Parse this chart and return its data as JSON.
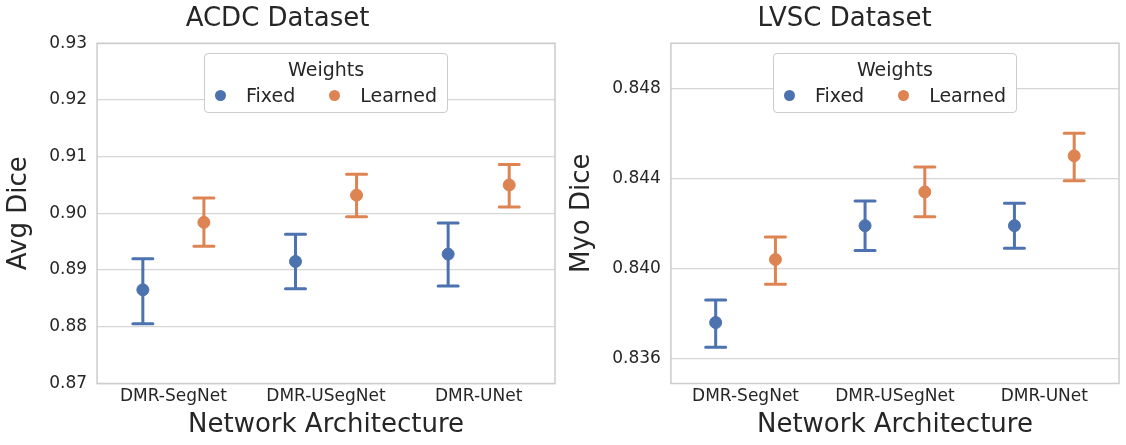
{
  "chart_data": [
    {
      "type": "scatter",
      "title": "ACDC Dataset",
      "xlabel": "Network Architecture",
      "ylabel": "Avg Dice",
      "legend_title": "Weights",
      "categories": [
        "DMR-SegNet",
        "DMR-USegNet",
        "DMR-UNet"
      ],
      "series": [
        {
          "name": "Fixed",
          "color": "#4c72b0",
          "values": [
            0.8865,
            0.8915,
            0.8928
          ],
          "errors": [
            [
              0.8805,
              0.892
            ],
            [
              0.8867,
              0.8963
            ],
            [
              0.8872,
              0.8983
            ]
          ]
        },
        {
          "name": "Learned",
          "color": "#dd8452",
          "values": [
            0.8984,
            0.9032,
            0.905
          ],
          "errors": [
            [
              0.8942,
              0.9027
            ],
            [
              0.8994,
              0.9069
            ],
            [
              0.9011,
              0.9086
            ]
          ]
        }
      ],
      "ylim": [
        0.87,
        0.93
      ],
      "yticks": [
        {
          "value": 0.87,
          "label": "0.87"
        },
        {
          "value": 0.88,
          "label": "0.88"
        },
        {
          "value": 0.89,
          "label": "0.89"
        },
        {
          "value": 0.9,
          "label": "0.90"
        },
        {
          "value": 0.91,
          "label": "0.91"
        },
        {
          "value": 0.92,
          "label": "0.92"
        },
        {
          "value": 0.93,
          "label": "0.93"
        }
      ],
      "grid": "y",
      "legend": "top",
      "marker": "circle"
    },
    {
      "type": "scatter",
      "title": "LVSC Dataset",
      "xlabel": "Network Architecture",
      "ylabel": "Myo Dice",
      "legend_title": "Weights",
      "categories": [
        "DMR-SegNet",
        "DMR-USegNet",
        "DMR-UNet"
      ],
      "series": [
        {
          "name": "Fixed",
          "color": "#4c72b0",
          "values": [
            0.8376,
            0.8419,
            0.8419
          ],
          "errors": [
            [
              0.8365,
              0.8386
            ],
            [
              0.8408,
              0.843
            ],
            [
              0.8409,
              0.8429
            ]
          ]
        },
        {
          "name": "Learned",
          "color": "#dd8452",
          "values": [
            0.8404,
            0.8434,
            0.845
          ],
          "errors": [
            [
              0.8393,
              0.8414
            ],
            [
              0.8423,
              0.8445
            ],
            [
              0.8439,
              0.846
            ]
          ]
        }
      ],
      "ylim": [
        0.8349,
        0.85
      ],
      "yticks": [
        {
          "value": 0.836,
          "label": "0.836"
        },
        {
          "value": 0.84,
          "label": "0.840"
        },
        {
          "value": 0.844,
          "label": "0.844"
        },
        {
          "value": 0.848,
          "label": "0.848"
        }
      ],
      "grid": "y",
      "legend": "top",
      "marker": "circle"
    }
  ]
}
